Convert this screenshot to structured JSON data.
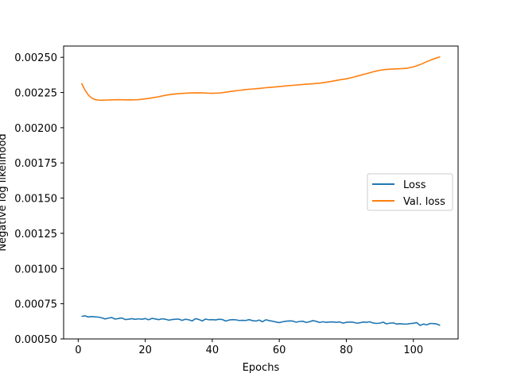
{
  "chart_data": {
    "type": "line",
    "title": "",
    "xlabel": "Epochs",
    "ylabel": "Negative log likelihood",
    "xlim": [
      -4.35,
      113.35
    ],
    "ylim": [
      0.0005,
      0.00258
    ],
    "xticks": [
      0,
      20,
      40,
      60,
      80,
      100
    ],
    "xtick_labels": [
      "0",
      "20",
      "40",
      "60",
      "80",
      "100"
    ],
    "yticks": [
      0.0005,
      0.00075,
      0.001,
      0.00125,
      0.0015,
      0.00175,
      0.002,
      0.00225,
      0.0025
    ],
    "ytick_labels": [
      "0.00050",
      "0.00075",
      "0.00100",
      "0.00125",
      "0.00150",
      "0.00175",
      "0.00200",
      "0.00225",
      "0.00250"
    ],
    "grid": false,
    "legend_position": "center-right",
    "series": [
      {
        "name": "Loss",
        "color": "#1f77b4",
        "x": [
          1,
          2,
          3,
          4,
          5,
          6,
          7,
          8,
          9,
          10,
          11,
          12,
          13,
          14,
          15,
          16,
          17,
          18,
          19,
          20,
          21,
          22,
          23,
          24,
          25,
          26,
          27,
          28,
          29,
          30,
          31,
          32,
          33,
          34,
          35,
          36,
          37,
          38,
          39,
          40,
          41,
          42,
          43,
          44,
          45,
          46,
          47,
          48,
          49,
          50,
          51,
          52,
          53,
          54,
          55,
          56,
          57,
          58,
          59,
          60,
          61,
          62,
          63,
          64,
          65,
          66,
          67,
          68,
          69,
          70,
          71,
          72,
          73,
          74,
          75,
          76,
          77,
          78,
          79,
          80,
          81,
          82,
          83,
          84,
          85,
          86,
          87,
          88,
          89,
          90,
          91,
          92,
          93,
          94,
          95,
          96,
          97,
          98,
          99,
          100,
          101,
          102,
          103,
          104,
          105,
          106,
          107,
          108
        ],
        "y": [
          0.00066,
          0.000664,
          0.000656,
          0.000659,
          0.000657,
          0.000655,
          0.00065,
          0.000642,
          0.000648,
          0.000652,
          0.000641,
          0.000645,
          0.000649,
          0.000638,
          0.00064,
          0.000644,
          0.000639,
          0.000643,
          0.00064,
          0.000645,
          0.000636,
          0.000646,
          0.000642,
          0.000637,
          0.000643,
          0.00064,
          0.000633,
          0.000638,
          0.00064,
          0.000641,
          0.000632,
          0.00064,
          0.000636,
          0.000628,
          0.000644,
          0.000638,
          0.000628,
          0.000641,
          0.000636,
          0.000637,
          0.000635,
          0.00064,
          0.000638,
          0.000627,
          0.000634,
          0.000637,
          0.000636,
          0.000631,
          0.000632,
          0.000631,
          0.000637,
          0.00063,
          0.000627,
          0.000634,
          0.000622,
          0.000636,
          0.00063,
          0.000626,
          0.00062,
          0.000616,
          0.000622,
          0.000626,
          0.000628,
          0.000627,
          0.000619,
          0.000624,
          0.000626,
          0.000617,
          0.000622,
          0.00063,
          0.000625,
          0.000617,
          0.000622,
          0.000618,
          0.00062,
          0.000621,
          0.000618,
          0.000621,
          0.000612,
          0.000618,
          0.00062,
          0.000619,
          0.000612,
          0.000614,
          0.00062,
          0.000618,
          0.000622,
          0.000613,
          0.00061,
          0.000612,
          0.000619,
          0.000607,
          0.000612,
          0.000614,
          0.000606,
          0.000608,
          0.000606,
          0.000605,
          0.000609,
          0.000611,
          0.000616,
          0.000596,
          0.000606,
          0.0006,
          0.00061,
          0.000609,
          0.000606,
          0.000596
        ]
      },
      {
        "name": "Val. loss",
        "color": "#ff7f0e",
        "x": [
          1,
          2,
          3,
          4,
          5,
          6,
          7,
          8,
          10,
          12,
          14,
          16,
          18,
          20,
          22,
          24,
          26,
          28,
          30,
          32,
          34,
          36,
          38,
          40,
          42,
          44,
          46,
          48,
          50,
          52,
          54,
          56,
          58,
          60,
          62,
          64,
          66,
          68,
          70,
          72,
          74,
          76,
          78,
          80,
          82,
          84,
          86,
          88,
          90,
          92,
          94,
          96,
          98,
          100,
          102,
          104,
          106,
          108
        ],
        "y": [
          0.002316,
          0.002268,
          0.002233,
          0.002211,
          0.0022,
          0.002196,
          0.002195,
          0.002196,
          0.002198,
          0.002199,
          0.002198,
          0.002198,
          0.002199,
          0.002205,
          0.002212,
          0.00222,
          0.00223,
          0.002237,
          0.002242,
          0.002245,
          0.002247,
          0.002248,
          0.002246,
          0.002244,
          0.002246,
          0.002252,
          0.002259,
          0.002265,
          0.002271,
          0.002275,
          0.002279,
          0.002284,
          0.002288,
          0.002292,
          0.002297,
          0.002301,
          0.002305,
          0.002309,
          0.002312,
          0.002316,
          0.002323,
          0.002331,
          0.00234,
          0.002347,
          0.002358,
          0.002371,
          0.002384,
          0.002397,
          0.002408,
          0.002414,
          0.002417,
          0.002419,
          0.002422,
          0.002432,
          0.002448,
          0.002469,
          0.002488,
          0.002504
        ]
      }
    ]
  }
}
